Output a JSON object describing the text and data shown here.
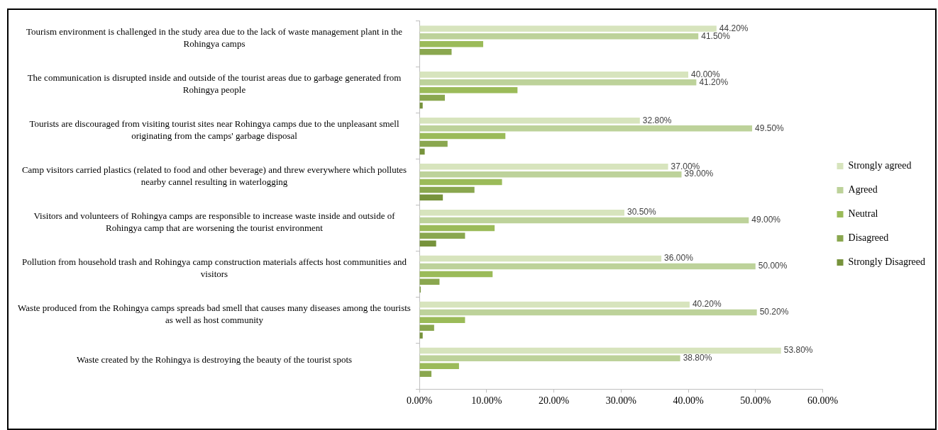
{
  "chart_data": {
    "type": "bar",
    "orientation": "horizontal",
    "categories": [
      "Tourism environment is challenged in the study area due to the lack of waste management plant in the Rohingya camps",
      "The communication is disrupted inside and outside of the tourist areas due to garbage generated from Rohingya people",
      "Tourists are discouraged from visiting tourist sites near Rohingya camps due to the unpleasant smell originating from the camps' garbage disposal",
      "Camp visitors carried plastics (related to food and other beverage) and threw everywhere which pollutes nearby cannel resulting in waterlogging",
      "Visitors and volunteers of Rohingya camps are responsible to increase waste inside and outside of Rohingya camp that are worsening the tourist environment",
      "Pollution from household trash and Rohingya camp construction materials affects host communities and visitors",
      "Waste produced from the Rohingya camps spreads bad smell that causes many diseases among the tourists as well as host community",
      "Waste created by the Rohingya is destroying the beauty of the tourist spots"
    ],
    "series": [
      {
        "name": "Strongly agreed",
        "color": "#d7e4bd",
        "values": [
          44.2,
          40.0,
          32.8,
          37.0,
          30.5,
          36.0,
          40.2,
          53.8
        ],
        "value_labels": [
          "44.20%",
          "40.00%",
          "32.80%",
          "37.00%",
          "30.50%",
          "36.00%",
          "40.20%",
          "53.80%"
        ]
      },
      {
        "name": "Agreed",
        "color": "#bdd29a",
        "values": [
          41.5,
          41.2,
          49.5,
          39.0,
          49.0,
          50.0,
          50.2,
          38.8
        ],
        "value_labels": [
          "41.50%",
          "41.20%",
          "49.50%",
          "39.00%",
          "49.00%",
          "50.00%",
          "50.20%",
          "38.80%"
        ]
      },
      {
        "name": "Neutral",
        "color": "#9bbb59",
        "values": [
          9.5,
          14.6,
          12.8,
          12.3,
          11.2,
          10.9,
          6.8,
          5.9
        ]
      },
      {
        "name": "Disagreed",
        "color": "#8aa74f",
        "values": [
          4.8,
          3.8,
          4.2,
          8.2,
          6.8,
          3.0,
          2.2,
          1.8
        ]
      },
      {
        "name": "Strongly Disagreed",
        "color": "#77933c",
        "values": [
          null,
          0.5,
          0.8,
          3.5,
          2.5,
          0.2,
          0.5,
          null
        ]
      }
    ],
    "xlim": [
      0,
      60
    ],
    "xticks": [
      {
        "value": 0,
        "label": "0.00%"
      },
      {
        "value": 10,
        "label": "10.00%"
      },
      {
        "value": 20,
        "label": "20.00%"
      },
      {
        "value": 30,
        "label": "30.00%"
      },
      {
        "value": 40,
        "label": "40.00%"
      },
      {
        "value": 50,
        "label": "50.00%"
      },
      {
        "value": 60,
        "label": "60.00%"
      }
    ],
    "grid": false,
    "legend": "right"
  }
}
